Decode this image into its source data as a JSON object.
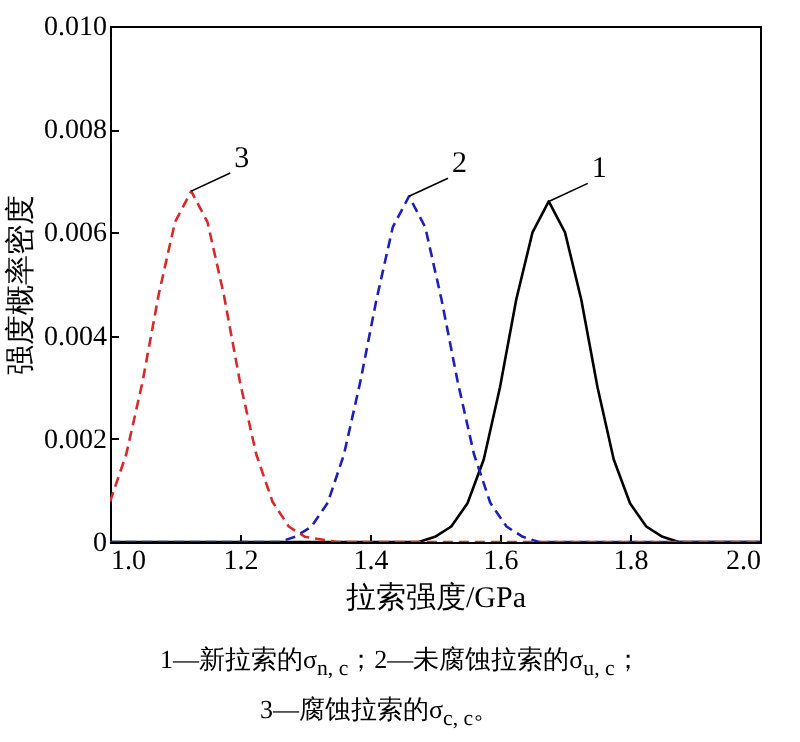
{
  "chart_data": {
    "type": "line",
    "xlabel": "拉索强度/GPa",
    "ylabel": "强度概率密度",
    "xlim": [
      1.0,
      2.0
    ],
    "xticks": [
      {
        "value": 1.0,
        "label": "1.0"
      },
      {
        "value": 1.2,
        "label": "1.2"
      },
      {
        "value": 1.4,
        "label": "1.4"
      },
      {
        "value": 1.6,
        "label": "1.6"
      },
      {
        "value": 1.8,
        "label": "1.8"
      },
      {
        "value": 2.0,
        "label": "2.0"
      }
    ],
    "ylim": [
      0,
      0.01
    ],
    "yticks": [
      0,
      0.002,
      0.004,
      0.006,
      0.008,
      {
        "value": 0.01,
        "label": "0.010"
      }
    ],
    "grid": false,
    "marker": "none",
    "series": [
      {
        "name": "1",
        "color": "#000000",
        "line_style": "solid",
        "x": [
          1.0,
          1.45,
          1.475,
          1.5,
          1.525,
          1.55,
          1.575,
          1.6,
          1.625,
          1.65,
          1.675,
          1.7,
          1.725,
          1.75,
          1.775,
          1.8,
          1.825,
          1.85,
          1.875,
          2.0
        ],
        "values": [
          0,
          0,
          0,
          0.0001,
          0.0003,
          0.00075,
          0.0016,
          0.003,
          0.0047,
          0.006,
          0.0066,
          0.006,
          0.0047,
          0.003,
          0.0016,
          0.00075,
          0.0003,
          0.0001,
          0,
          0
        ]
      },
      {
        "name": "2",
        "color": "#1f1fb4",
        "line_style": "dashed",
        "x": [
          1.0,
          1.235,
          1.26,
          1.285,
          1.31,
          1.335,
          1.36,
          1.385,
          1.41,
          1.435,
          1.46,
          1.485,
          1.51,
          1.535,
          1.56,
          1.585,
          1.61,
          1.635,
          1.66,
          2.0
        ],
        "values": [
          0,
          0,
          0,
          0.0001,
          0.0003,
          0.00076,
          0.0017,
          0.0031,
          0.0047,
          0.0061,
          0.0067,
          0.0061,
          0.0047,
          0.0031,
          0.0017,
          0.00076,
          0.0003,
          0.0001,
          0,
          0
        ]
      },
      {
        "name": "3",
        "color": "#d42a2a",
        "line_style": "dashed",
        "x": [
          1.0,
          1.025,
          1.05,
          1.075,
          1.1,
          1.125,
          1.15,
          1.175,
          1.2,
          1.225,
          1.25,
          1.275,
          1.3,
          1.35,
          2.0
        ],
        "values": [
          0.00078,
          0.0017,
          0.0031,
          0.0048,
          0.0062,
          0.0068,
          0.0062,
          0.0048,
          0.0031,
          0.0017,
          0.00078,
          0.0003,
          0.0001,
          0,
          0
        ]
      }
    ],
    "annotations": [
      "1—新拉索的σ$_{n, c}$；2—未腐蚀拉索的σ$_{u, c}$；",
      "3—腐蚀拉索的σ$_{c, c}$。"
    ]
  }
}
